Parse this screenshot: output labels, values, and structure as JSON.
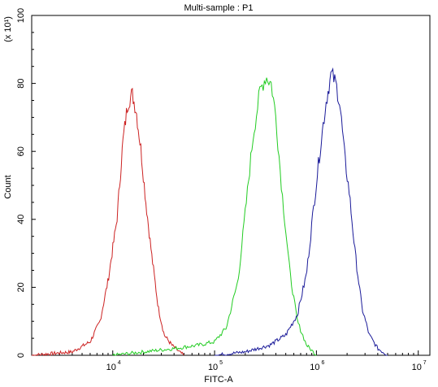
{
  "chart_data": {
    "type": "line",
    "title": "Multi-sample : P1",
    "xlabel": "FITC-A",
    "ylabel": "Count",
    "y_multiplier_label": "(x 10¹)",
    "x_scale": "log",
    "xlim": [
      1600.0,
      13000000.0
    ],
    "ylim": [
      0,
      100
    ],
    "x_ticks": [
      {
        "base": "10",
        "exp": "4",
        "value": 10000
      },
      {
        "base": "10",
        "exp": "5",
        "value": 100000
      },
      {
        "base": "10",
        "exp": "6",
        "value": 1000000
      },
      {
        "base": "10",
        "exp": "7",
        "value": 10000000
      }
    ],
    "y_ticks": [
      "0",
      "20",
      "40",
      "60",
      "80",
      "100"
    ],
    "grid": false,
    "legend": "none",
    "series": [
      {
        "color": "#cc2222",
        "x": [
          1600.0,
          2500.0,
          4000.0,
          6000.0,
          7500.0,
          9000.0,
          11000.0,
          12500.0,
          14000.0,
          15500.0,
          17000.0,
          19000.0,
          21000.0,
          24000.0,
          28000.0,
          32000.0,
          38000.0,
          45000.0,
          50000.0
        ],
        "y": [
          0,
          0.5,
          1,
          4,
          10,
          22,
          40,
          62,
          74,
          77,
          72,
          60,
          46,
          30,
          14,
          6,
          3,
          1,
          0
        ]
      },
      {
        "color": "#22cc22",
        "x": [
          10000.0,
          20000.0,
          40000.0,
          70000.0,
          100000.0,
          130000.0,
          170000.0,
          200000.0,
          240000.0,
          280000.0,
          320000.0,
          360000.0,
          400000.0,
          460000.0,
          550000.0,
          650000.0,
          800000.0,
          1000000.0
        ],
        "y": [
          0,
          1,
          2,
          3,
          4,
          8,
          22,
          42,
          65,
          78,
          82,
          80,
          70,
          48,
          24,
          10,
          3,
          0
        ]
      },
      {
        "color": "#1a1a99",
        "x": [
          100000.0,
          200000.0,
          350000.0,
          500000.0,
          650000.0,
          800000.0,
          950000.0,
          1100000.0,
          1250000.0,
          1400000.0,
          1550000.0,
          1700000.0,
          1900000.0,
          2100000.0,
          2400000.0,
          2800000.0,
          3300000.0,
          4000000.0,
          5000000.0
        ],
        "y": [
          0,
          1,
          3,
          6,
          12,
          24,
          45,
          62,
          75,
          83,
          80,
          74,
          58,
          48,
          30,
          14,
          6,
          2,
          0
        ]
      }
    ]
  }
}
